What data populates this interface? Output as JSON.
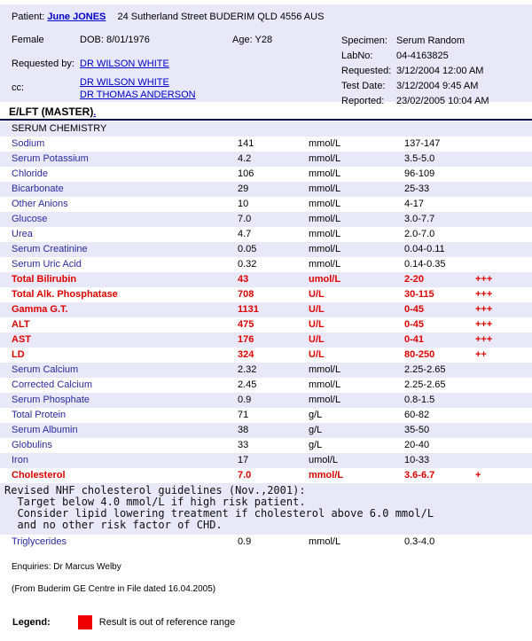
{
  "colors": {
    "panel_shade": "#E8E8F8",
    "test_name_blue": "#2A2AA0",
    "link_blue": "#0000CC",
    "abnormal_red": "#DD0000",
    "legend_red": "#EE0000",
    "divider_navy": "#000040"
  },
  "header": {
    "patient_label": "Patient:",
    "patient_name": "June JONES",
    "patient_address": "24 Sutherland Street BUDERIM QLD 4556 AUS",
    "sex": "Female",
    "dob": "DOB: 8/01/1976",
    "age": "Age: Y28",
    "requested_by_label": "Requested by:",
    "requested_by": "DR WILSON WHITE",
    "cc_label": "cc:",
    "cc": [
      "DR WILSON WHITE",
      "DR THOMAS ANDERSON"
    ],
    "right": [
      {
        "label": "Specimen:",
        "value": "Serum Random"
      },
      {
        "label": "LabNo:",
        "value": "04-4163825"
      },
      {
        "label": "Requested:",
        "value": "3/12/2004 12:00 AM"
      },
      {
        "label": "Test Date:",
        "value": "3/12/2004 9:45 AM"
      },
      {
        "label": "Reported:",
        "value": "23/02/2005 10:04 AM"
      }
    ]
  },
  "report": {
    "section_title": "E/LFT (MASTER)",
    "section_title_suffix": ".",
    "rows": [
      {
        "type": "group",
        "label": "SERUM CHEMISTRY"
      },
      {
        "type": "result",
        "name": "Sodium",
        "value": "141",
        "units": "mmol/L",
        "range": "137-147",
        "flags": "",
        "abnormal": false
      },
      {
        "type": "result",
        "name": "Serum Potassium",
        "value": "4.2",
        "units": "mmol/L",
        "range": "3.5-5.0",
        "flags": "",
        "abnormal": false
      },
      {
        "type": "result",
        "name": "Chloride",
        "value": "106",
        "units": "mmol/L",
        "range": "96-109",
        "flags": "",
        "abnormal": false
      },
      {
        "type": "result",
        "name": "Bicarbonate",
        "value": "29",
        "units": "mmol/L",
        "range": "25-33",
        "flags": "",
        "abnormal": false
      },
      {
        "type": "result",
        "name": "Other Anions",
        "value": "10",
        "units": "mmol/L",
        "range": "4-17",
        "flags": "",
        "abnormal": false
      },
      {
        "type": "result",
        "name": "Glucose",
        "value": "7.0",
        "units": "mmol/L",
        "range": "3.0-7.7",
        "flags": "",
        "abnormal": false
      },
      {
        "type": "result",
        "name": "Urea",
        "value": "4.7",
        "units": "mmol/L",
        "range": "2.0-7.0",
        "flags": "",
        "abnormal": false
      },
      {
        "type": "result",
        "name": "Serum Creatinine",
        "value": "0.05",
        "units": "mmol/L",
        "range": "0.04-0.11",
        "flags": "",
        "abnormal": false
      },
      {
        "type": "result",
        "name": "Serum Uric Acid",
        "value": "0.32",
        "units": "mmol/L",
        "range": "0.14-0.35",
        "flags": "",
        "abnormal": false
      },
      {
        "type": "result",
        "name": "Total Bilirubin",
        "value": "43",
        "units": "umol/L",
        "range": "2-20",
        "flags": "+++",
        "abnormal": true
      },
      {
        "type": "result",
        "name": "Total Alk. Phosphatase",
        "value": "708",
        "units": "U/L",
        "range": "30-115",
        "flags": "+++",
        "abnormal": true
      },
      {
        "type": "result",
        "name": "Gamma G.T.",
        "value": "1131",
        "units": "U/L",
        "range": "0-45",
        "flags": "+++",
        "abnormal": true
      },
      {
        "type": "result",
        "name": "ALT",
        "value": "475",
        "units": "U/L",
        "range": "0-45",
        "flags": "+++",
        "abnormal": true
      },
      {
        "type": "result",
        "name": "AST",
        "value": "176",
        "units": "U/L",
        "range": "0-41",
        "flags": "+++",
        "abnormal": true
      },
      {
        "type": "result",
        "name": "LD",
        "value": "324",
        "units": "U/L",
        "range": "80-250",
        "flags": "++",
        "abnormal": true
      },
      {
        "type": "result",
        "name": "Serum Calcium",
        "value": "2.32",
        "units": "mmol/L",
        "range": "2.25-2.65",
        "flags": "",
        "abnormal": false
      },
      {
        "type": "result",
        "name": "Corrected Calcium",
        "value": "2.45",
        "units": "mmol/L",
        "range": "2.25-2.65",
        "flags": "",
        "abnormal": false
      },
      {
        "type": "result",
        "name": "Serum Phosphate",
        "value": "0.9",
        "units": "mmol/L",
        "range": "0.8-1.5",
        "flags": "",
        "abnormal": false
      },
      {
        "type": "result",
        "name": "Total Protein",
        "value": "71",
        "units": "g/L",
        "range": "60-82",
        "flags": "",
        "abnormal": false
      },
      {
        "type": "result",
        "name": "Serum Albumin",
        "value": "38",
        "units": "g/L",
        "range": "35-50",
        "flags": "",
        "abnormal": false
      },
      {
        "type": "result",
        "name": "Globulins",
        "value": "33",
        "units": "g/L",
        "range": "20-40",
        "flags": "",
        "abnormal": false
      },
      {
        "type": "result",
        "name": "Iron",
        "value": "17",
        "units": "umol/L",
        "range": "10-33",
        "flags": "",
        "abnormal": false
      },
      {
        "type": "result",
        "name": "Cholesterol",
        "value": "7.0",
        "units": "mmol/L",
        "range": "3.6-6.7",
        "flags": "+",
        "abnormal": true
      },
      {
        "type": "note",
        "lines": [
          "Revised NHF cholesterol guidelines (Nov.,2001):",
          "  Target below 4.0 mmol/L if high risk patient.",
          "  Consider lipid lowering treatment if cholesterol above 6.0 mmol/L",
          "  and no other risk factor of CHD."
        ]
      },
      {
        "type": "result",
        "name": "Triglycerides",
        "value": "0.9",
        "units": "mmol/L",
        "range": "0.3-4.0",
        "flags": "",
        "abnormal": false
      }
    ]
  },
  "footer": {
    "enquiries": "Enquiries: Dr Marcus Welby",
    "source": "(From Buderim GE Centre in File  dated 16.04.2005)",
    "legend_label": "Legend:",
    "legend_text": "Result is out of reference range"
  }
}
